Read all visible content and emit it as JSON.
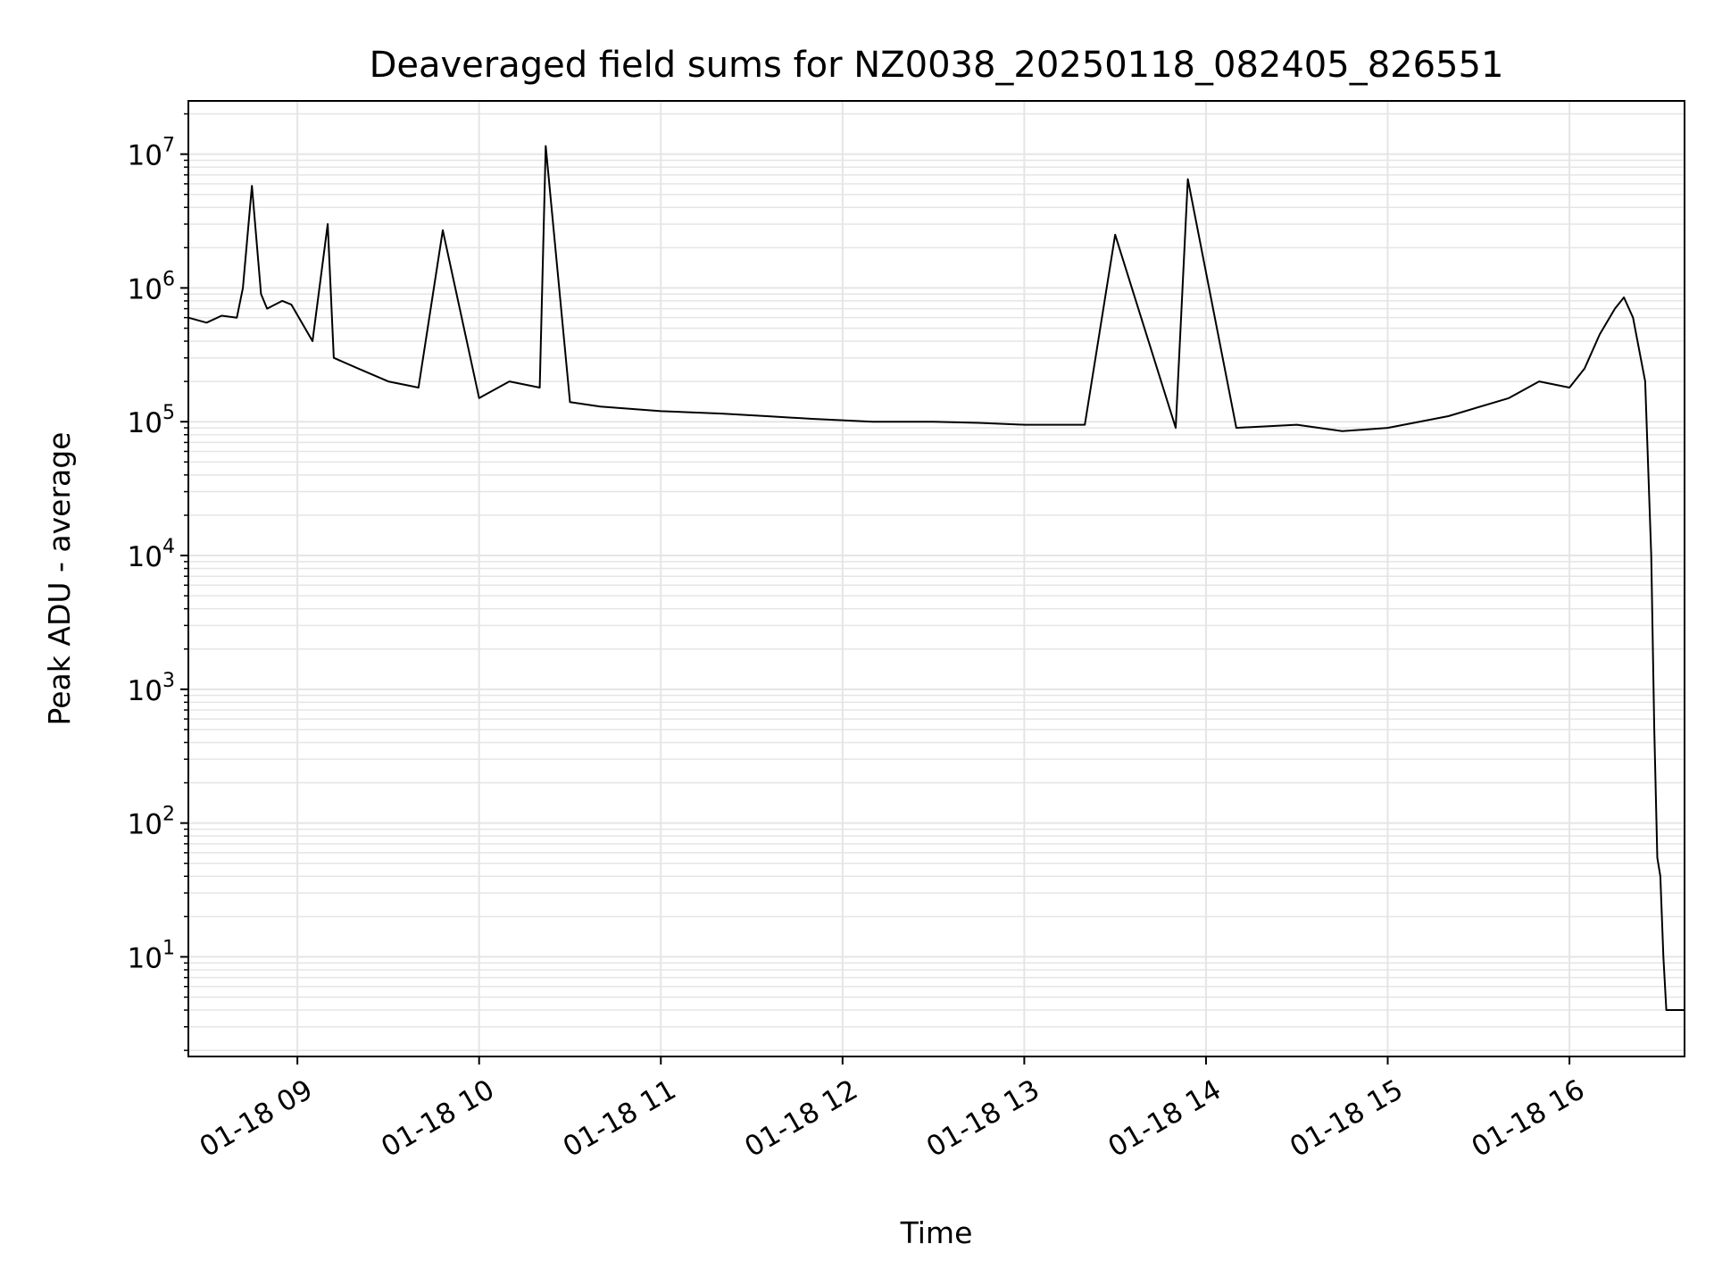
{
  "chart_data": {
    "type": "line",
    "title": "Deaveraged field sums for NZ0038_20250118_082405_826551",
    "xlabel": "Time",
    "ylabel": "Peak ADU - average",
    "x_scale": "time",
    "y_scale": "log",
    "xlim": [
      "2025-01-18 08:24",
      "2025-01-18 16:38"
    ],
    "ylim": [
      1.8,
      25000000
    ],
    "grid": true,
    "grid_minor": true,
    "legend": "none",
    "line_color": "#000000",
    "grid_color": "#e5e5e5",
    "x_ticks": [
      {
        "value": "2025-01-18 09:00",
        "label": "01-18 09"
      },
      {
        "value": "2025-01-18 10:00",
        "label": "01-18 10"
      },
      {
        "value": "2025-01-18 11:00",
        "label": "01-18 11"
      },
      {
        "value": "2025-01-18 12:00",
        "label": "01-18 12"
      },
      {
        "value": "2025-01-18 13:00",
        "label": "01-18 13"
      },
      {
        "value": "2025-01-18 14:00",
        "label": "01-18 14"
      },
      {
        "value": "2025-01-18 15:00",
        "label": "01-18 15"
      },
      {
        "value": "2025-01-18 16:00",
        "label": "01-18 16"
      }
    ],
    "y_ticks": [
      {
        "value": 10,
        "base": "10",
        "exp": "1"
      },
      {
        "value": 100,
        "base": "10",
        "exp": "2"
      },
      {
        "value": 1000,
        "base": "10",
        "exp": "3"
      },
      {
        "value": 10000,
        "base": "10",
        "exp": "4"
      },
      {
        "value": 100000,
        "base": "10",
        "exp": "5"
      },
      {
        "value": 1000000,
        "base": "10",
        "exp": "6"
      },
      {
        "value": 10000000,
        "base": "10",
        "exp": "7"
      }
    ],
    "series": [
      {
        "x": [
          "2025-01-18 08:24",
          "2025-01-18 08:30",
          "2025-01-18 08:35",
          "2025-01-18 08:40",
          "2025-01-18 08:42",
          "2025-01-18 08:45",
          "2025-01-18 08:48",
          "2025-01-18 08:50",
          "2025-01-18 08:55",
          "2025-01-18 08:58",
          "2025-01-18 09:05",
          "2025-01-18 09:10",
          "2025-01-18 09:12",
          "2025-01-18 09:20",
          "2025-01-18 09:30",
          "2025-01-18 09:40",
          "2025-01-18 09:48",
          "2025-01-18 10:00",
          "2025-01-18 10:10",
          "2025-01-18 10:20",
          "2025-01-18 10:22",
          "2025-01-18 10:30",
          "2025-01-18 10:40",
          "2025-01-18 11:00",
          "2025-01-18 11:20",
          "2025-01-18 11:35",
          "2025-01-18 11:50",
          "2025-01-18 12:10",
          "2025-01-18 12:30",
          "2025-01-18 12:45",
          "2025-01-18 13:00",
          "2025-01-18 13:20",
          "2025-01-18 13:30",
          "2025-01-18 13:50",
          "2025-01-18 13:54",
          "2025-01-18 14:10",
          "2025-01-18 14:30",
          "2025-01-18 14:45",
          "2025-01-18 15:00",
          "2025-01-18 15:20",
          "2025-01-18 15:40",
          "2025-01-18 15:50",
          "2025-01-18 16:00",
          "2025-01-18 16:05",
          "2025-01-18 16:10",
          "2025-01-18 16:15",
          "2025-01-18 16:18",
          "2025-01-18 16:21",
          "2025-01-18 16:25",
          "2025-01-18 16:27",
          "2025-01-18 16:28",
          "2025-01-18 16:29",
          "2025-01-18 16:30",
          "2025-01-18 16:31",
          "2025-01-18 16:32",
          "2025-01-18 16:33",
          "2025-01-18 16:38"
        ],
        "y": [
          600000,
          550000,
          620000,
          600000,
          1000000,
          5800000,
          900000,
          700000,
          800000,
          750000,
          400000,
          3000000,
          300000,
          250000,
          200000,
          180000,
          2700000,
          150000,
          200000,
          180000,
          11500000,
          140000,
          130000,
          120000,
          115000,
          110000,
          105000,
          100000,
          100000,
          98000,
          95000,
          95000,
          2500000,
          90000,
          6500000,
          90000,
          95000,
          85000,
          90000,
          110000,
          150000,
          200000,
          180000,
          250000,
          450000,
          700000,
          850000,
          600000,
          200000,
          10000,
          500,
          55,
          40,
          10,
          4,
          4,
          4
        ]
      }
    ]
  }
}
